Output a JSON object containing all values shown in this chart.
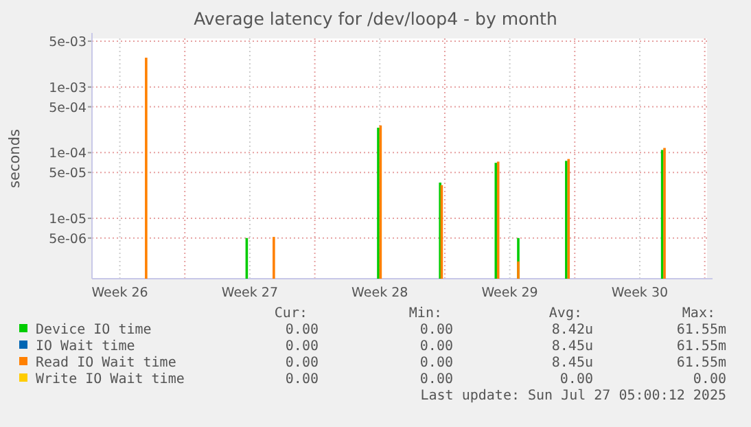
{
  "chart_data": {
    "type": "bar",
    "title": "Average latency for /dev/loop4 - by month",
    "ylabel": "seconds",
    "log": "y",
    "grid": true,
    "legend": "bottom",
    "ylim": [
      1.2e-06,
      0.0055
    ],
    "yticks": [
      {
        "value": 0.005,
        "label": "5e-03"
      },
      {
        "value": 0.001,
        "label": "1e-03"
      },
      {
        "value": 0.0005,
        "label": "5e-04"
      },
      {
        "value": 0.0001,
        "label": "1e-04"
      },
      {
        "value": 5e-05,
        "label": "5e-05"
      },
      {
        "value": 1e-05,
        "label": "1e-05"
      },
      {
        "value": 5e-06,
        "label": "5e-06"
      }
    ],
    "xlim": [
      "2025-06-25T00:00",
      "2025-07-28T03:00"
    ],
    "xticks": [
      {
        "value": "2025-06-26T12:00",
        "label": "Week 26"
      },
      {
        "value": "2025-06-30T00:00",
        "label": null
      },
      {
        "value": "2025-07-03T12:00",
        "label": "Week 27"
      },
      {
        "value": "2025-07-07T00:00",
        "label": null
      },
      {
        "value": "2025-07-10T12:00",
        "label": "Week 28"
      },
      {
        "value": "2025-07-14T00:00",
        "label": null
      },
      {
        "value": "2025-07-17T12:00",
        "label": "Week 29"
      },
      {
        "value": "2025-07-21T00:00",
        "label": null
      },
      {
        "value": "2025-07-24T12:00",
        "label": "Week 30"
      },
      {
        "value": "2025-07-28T00:00",
        "label": null
      }
    ],
    "series": [
      {
        "name": "Device IO time",
        "color": "#00cc00",
        "x": [
          "2025-07-03T08:00",
          "2025-07-10T10:00",
          "2025-07-13T18:00",
          "2025-07-16T18:00",
          "2025-07-17T23:00",
          "2025-07-20T13:00",
          "2025-07-25T17:00"
        ],
        "values": [
          5e-06,
          0.00024,
          3.5e-05,
          7e-05,
          5e-06,
          7.5e-05,
          0.00011
        ]
      },
      {
        "name": "IO Wait time",
        "color": "#0066b3"
      },
      {
        "name": "Read IO Wait time",
        "color": "#ff8000",
        "x": [
          "2025-06-27T22:00",
          "2025-07-04T19:00",
          "2025-07-10T13:00",
          "2025-07-13T20:00",
          "2025-07-16T21:00",
          "2025-07-17T23:00",
          "2025-07-20T16:00",
          "2025-07-25T20:00"
        ],
        "values": [
          0.0028,
          5.2e-06,
          0.00026,
          3.2e-05,
          7.3e-05,
          2.2e-06,
          8e-05,
          0.000118
        ]
      },
      {
        "name": "Write IO Wait time",
        "color": "#ffcc00"
      }
    ],
    "annotations": [
      "Cur:",
      "Min:",
      "Avg:",
      "Max:",
      "0.00",
      "0.00",
      "8.42u",
      "61.55m",
      "0.00",
      "0.00",
      "8.45u",
      "61.55m",
      "0.00",
      "0.00",
      "8.45u",
      "61.55m",
      "0.00",
      "0.00",
      "0.00",
      "0.00",
      "Last update: Sun Jul 27 05:00:12 2025"
    ]
  }
}
